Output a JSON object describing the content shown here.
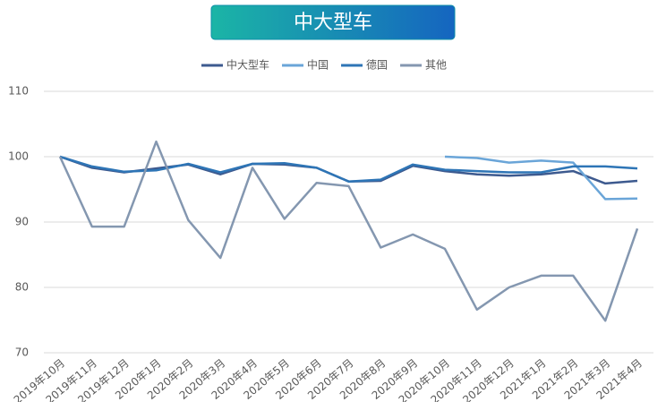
{
  "chart_data": {
    "type": "line",
    "title": "中大型车",
    "categories": [
      "2019年10月",
      "2019年11月",
      "2019年12月",
      "2020年1月",
      "2020年2月",
      "2020年3月",
      "2020年4月",
      "2020年5月",
      "2020年6月",
      "2020年7月",
      "2020年8月",
      "2020年9月",
      "2020年10月",
      "2020年11月",
      "2020年12月",
      "2021年1月",
      "2021年2月",
      "2021年3月",
      "2021年4月"
    ],
    "series": [
      {
        "name": "中大型车",
        "color": "#3d5a8f",
        "values": [
          100,
          98.3,
          97.6,
          98.2,
          98.8,
          97.3,
          98.9,
          98.8,
          98.3,
          96.2,
          96.3,
          98.6,
          97.8,
          97.3,
          97.1,
          97.3,
          97.8,
          95.9,
          96.3
        ]
      },
      {
        "name": "中国",
        "color": "#6aa5d8",
        "values": [
          null,
          null,
          null,
          null,
          null,
          null,
          null,
          null,
          null,
          null,
          null,
          null,
          100,
          99.8,
          99.1,
          99.4,
          99.1,
          93.5,
          93.6
        ]
      },
      {
        "name": "德国",
        "color": "#2e75b6",
        "values": [
          100,
          98.5,
          97.7,
          97.9,
          98.9,
          97.6,
          98.9,
          99.0,
          98.3,
          96.2,
          96.5,
          98.8,
          98.0,
          97.8,
          97.6,
          97.6,
          98.5,
          98.5,
          98.2
        ]
      },
      {
        "name": "其他",
        "color": "#8497b0",
        "values": [
          100,
          89.3,
          89.3,
          102.3,
          90.3,
          84.5,
          98.3,
          90.5,
          96.0,
          95.5,
          86.1,
          88.1,
          85.9,
          76.6,
          80.0,
          81.8,
          81.8,
          74.9,
          89.0
        ]
      }
    ],
    "ylim": [
      70,
      110
    ],
    "yticks": [
      70,
      80,
      90,
      100,
      110
    ],
    "grid": true
  }
}
